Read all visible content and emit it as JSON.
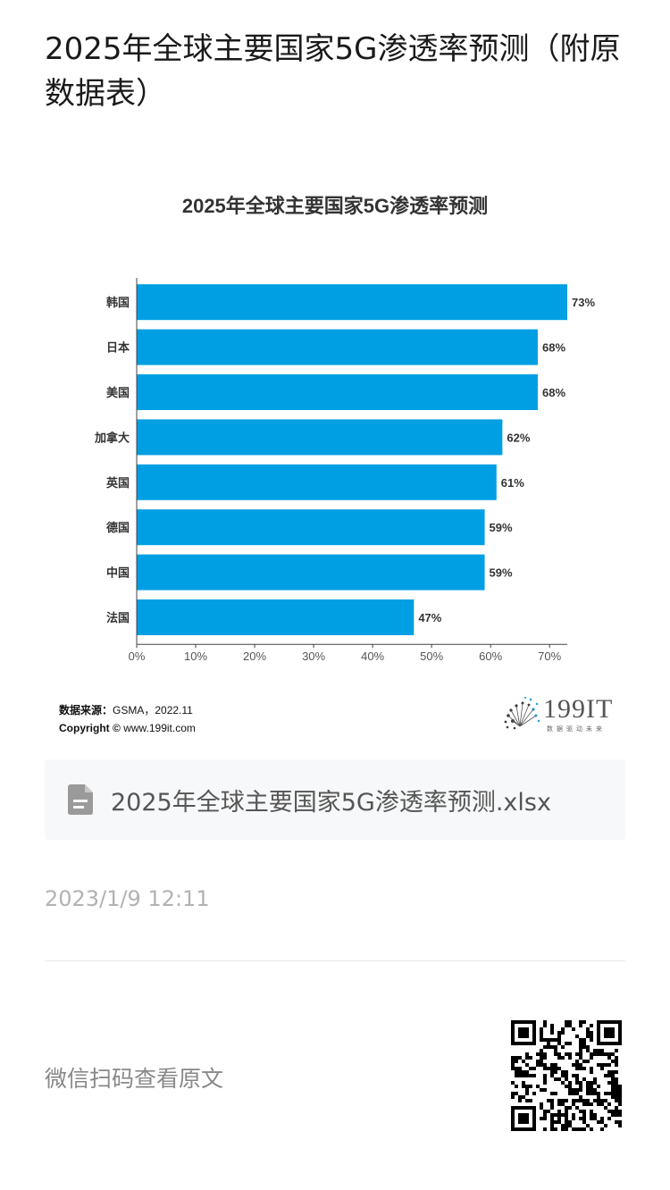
{
  "article": {
    "title": "2025年全球主要国家5G渗透率预测（附原数据表）"
  },
  "chart_data": {
    "type": "bar",
    "orientation": "horizontal",
    "title": "2025年全球主要国家5G渗透率预测",
    "categories": [
      "韩国",
      "日本",
      "美国",
      "加拿大",
      "英国",
      "德国",
      "中国",
      "法国"
    ],
    "values": [
      73,
      68,
      68,
      62,
      61,
      59,
      59,
      47
    ],
    "value_labels": [
      "73%",
      "68%",
      "68%",
      "62%",
      "61%",
      "59%",
      "59%",
      "47%"
    ],
    "xticks": [
      "0%",
      "10%",
      "20%",
      "30%",
      "40%",
      "50%",
      "60%",
      "70%"
    ],
    "xlim": [
      0,
      73
    ],
    "bar_color": "#009fe3",
    "grid": false,
    "source_label": "数据来源：",
    "source_value": "GSMA，2022.11",
    "copyright_label": "Copyright ©",
    "copyright_value": "www.199it.com"
  },
  "brand": {
    "name": "199IT",
    "slogan": "数据驱动未来"
  },
  "attachment": {
    "icon": "document-icon",
    "filename": "2025年全球主要国家5G渗透率预测.xlsx"
  },
  "meta": {
    "timestamp": "2023/1/9 12:11"
  },
  "footer": {
    "scan_hint": "微信扫码查看原文"
  }
}
